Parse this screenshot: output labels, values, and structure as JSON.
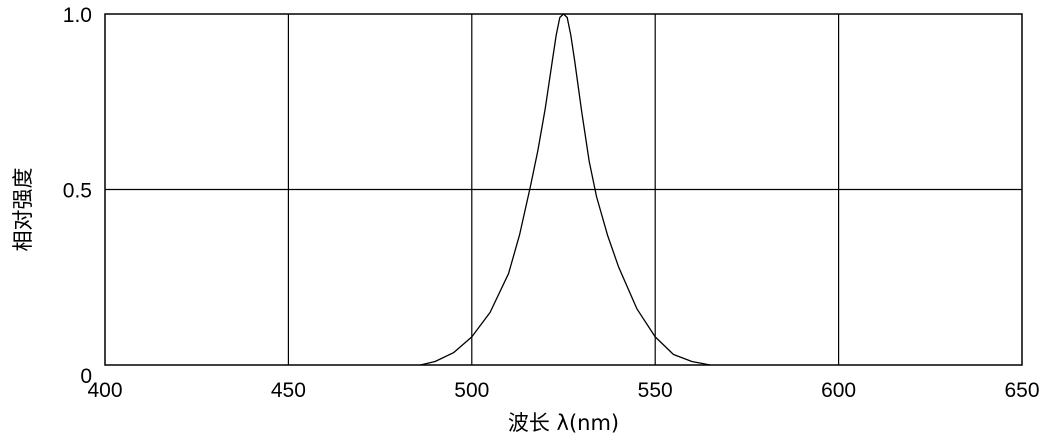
{
  "chart_data": {
    "type": "line",
    "xlabel": "波长  λ(nm)",
    "ylabel": "相对强度",
    "xlim": [
      400,
      650
    ],
    "ylim": [
      0,
      1.0
    ],
    "x_ticks": [
      400,
      450,
      500,
      550,
      600,
      650
    ],
    "x_tick_labels": [
      "400",
      "450",
      "500",
      "550",
      "600",
      "650"
    ],
    "y_ticks": [
      0,
      0.5,
      1.0
    ],
    "y_tick_labels": [
      "0",
      "0.5",
      "1.0"
    ],
    "grid": true,
    "series": [
      {
        "x": [
          486,
          490,
          495,
          500,
          505,
          510,
          513,
          516,
          518,
          520,
          522,
          523,
          524,
          525,
          526,
          527,
          528,
          530,
          532,
          534,
          537,
          540,
          545,
          550,
          555,
          560,
          565
        ],
        "y": [
          0.0,
          0.01,
          0.035,
          0.08,
          0.15,
          0.26,
          0.37,
          0.51,
          0.61,
          0.73,
          0.87,
          0.94,
          0.99,
          1.0,
          0.99,
          0.94,
          0.87,
          0.72,
          0.58,
          0.48,
          0.37,
          0.28,
          0.16,
          0.08,
          0.03,
          0.01,
          0.0
        ]
      }
    ]
  }
}
